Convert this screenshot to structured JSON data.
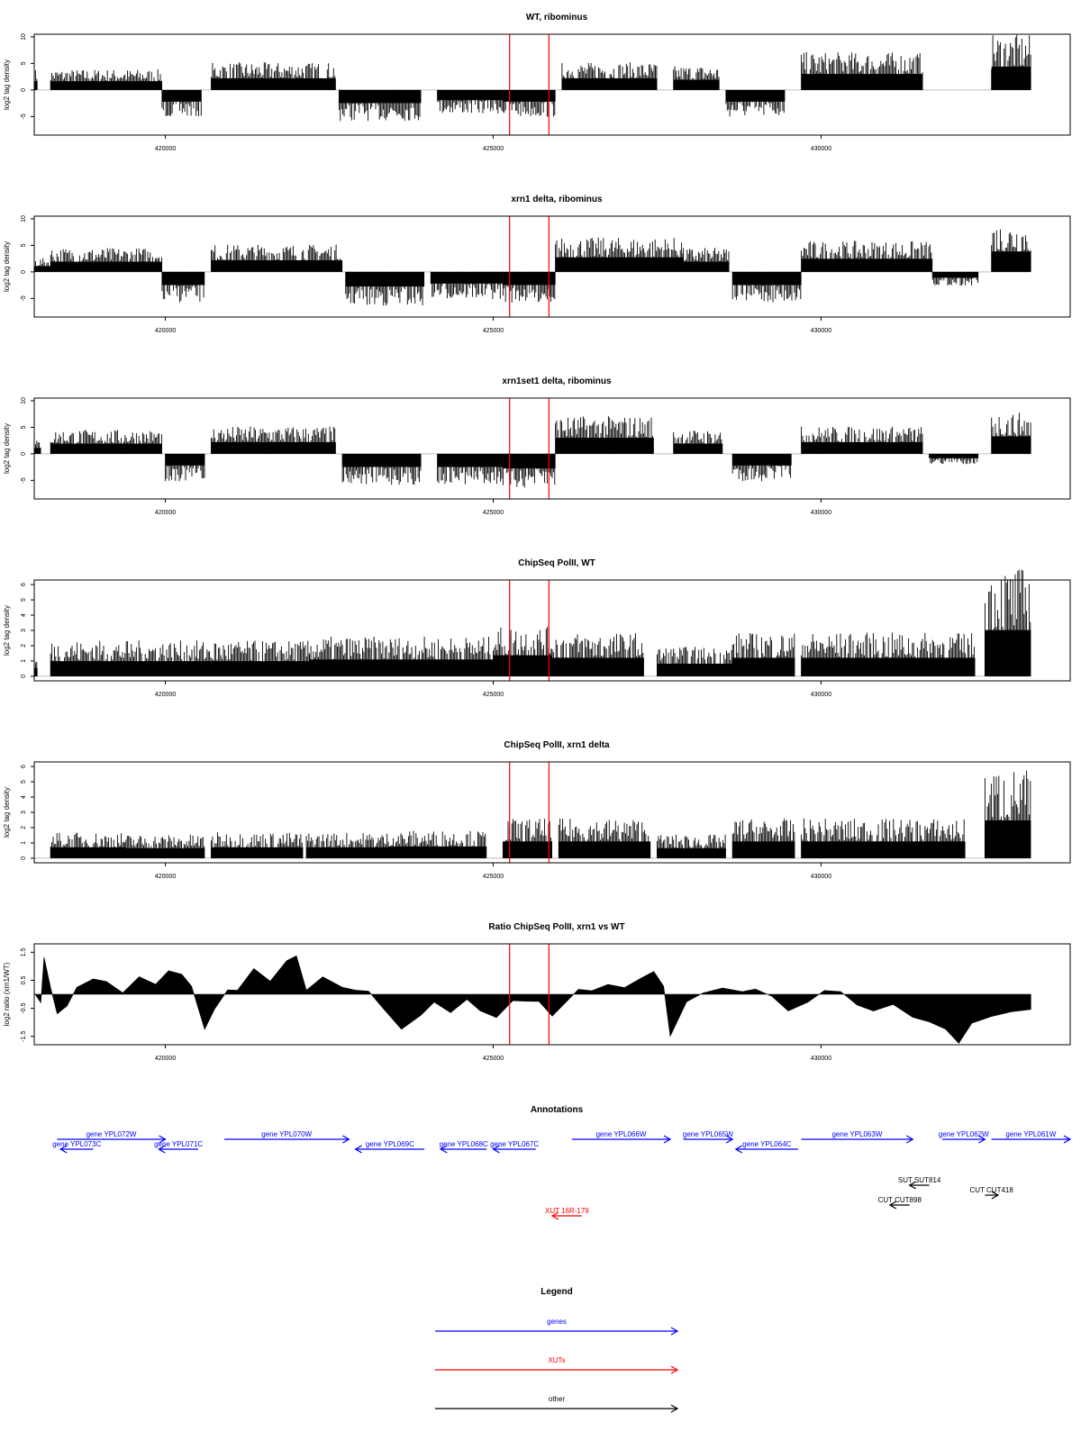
{
  "chart_data": [
    {
      "type": "bar",
      "title": "WT, ribominus",
      "xlabel": "",
      "ylabel": "log2 tag density",
      "xlim": [
        418000,
        433800
      ],
      "ylim": [
        -8.5,
        10.5
      ],
      "x_ticks": [
        420000,
        425000,
        430000
      ],
      "x_tick_labels": [
        "420000",
        "425000",
        "430000"
      ],
      "y_ticks": [
        -5,
        0,
        5,
        10
      ],
      "y_tick_labels": [
        "-5",
        "0",
        "5",
        "10"
      ],
      "marker_lines_x": [
        425250,
        425850
      ],
      "marker_color": "#ff0000",
      "bar_color": "#000000",
      "regions": [
        {
          "start": 418000,
          "end": 418050,
          "value": 3
        },
        {
          "start": 418250,
          "end": 419950,
          "value": 3
        },
        {
          "start": 419950,
          "end": 420550,
          "value": -4
        },
        {
          "start": 420700,
          "end": 422600,
          "value": 4
        },
        {
          "start": 422650,
          "end": 423900,
          "value": -4.5
        },
        {
          "start": 424150,
          "end": 425150,
          "value": -3.5
        },
        {
          "start": 425150,
          "end": 425950,
          "value": -4
        },
        {
          "start": 426050,
          "end": 427500,
          "value": 4
        },
        {
          "start": 427750,
          "end": 428450,
          "value": 3.5
        },
        {
          "start": 428550,
          "end": 429450,
          "value": -4
        },
        {
          "start": 429700,
          "end": 431550,
          "value": 5.5
        },
        {
          "start": 432600,
          "end": 433200,
          "value": 8
        }
      ]
    },
    {
      "type": "bar",
      "title": "xrn1 delta, ribominus",
      "xlabel": "",
      "ylabel": "log2 tag density",
      "xlim": [
        418000,
        433800
      ],
      "ylim": [
        -8.5,
        10.5
      ],
      "x_ticks": [
        420000,
        425000,
        430000
      ],
      "x_tick_labels": [
        "420000",
        "425000",
        "430000"
      ],
      "y_ticks": [
        -5,
        0,
        5,
        10
      ],
      "y_tick_labels": [
        "-5",
        "0",
        "5",
        "10"
      ],
      "marker_lines_x": [
        425250,
        425850
      ],
      "marker_color": "#ff0000",
      "bar_color": "#000000",
      "regions": [
        {
          "start": 418000,
          "end": 418250,
          "value": 2
        },
        {
          "start": 418250,
          "end": 419950,
          "value": 3.5
        },
        {
          "start": 419950,
          "end": 420600,
          "value": -4.5
        },
        {
          "start": 420700,
          "end": 422700,
          "value": 4
        },
        {
          "start": 422750,
          "end": 423950,
          "value": -5
        },
        {
          "start": 424050,
          "end": 425150,
          "value": -4
        },
        {
          "start": 425150,
          "end": 425950,
          "value": -4.5
        },
        {
          "start": 425950,
          "end": 427900,
          "value": 5
        },
        {
          "start": 427900,
          "end": 428600,
          "value": 3.5
        },
        {
          "start": 428650,
          "end": 429700,
          "value": -4.5
        },
        {
          "start": 429700,
          "end": 431700,
          "value": 4.5
        },
        {
          "start": 431700,
          "end": 432400,
          "value": -2
        },
        {
          "start": 432600,
          "end": 433200,
          "value": 7
        }
      ]
    },
    {
      "type": "bar",
      "title": "xrn1set1 delta, ribominus",
      "xlabel": "",
      "ylabel": "log2 tag density",
      "xlim": [
        418000,
        433800
      ],
      "ylim": [
        -8.5,
        10.5
      ],
      "x_ticks": [
        420000,
        425000,
        430000
      ],
      "x_tick_labels": [
        "420000",
        "425000",
        "430000"
      ],
      "y_ticks": [
        -5,
        0,
        5,
        10
      ],
      "y_tick_labels": [
        "-5",
        "0",
        "5",
        "10"
      ],
      "marker_lines_x": [
        425250,
        425850
      ],
      "marker_color": "#ff0000",
      "bar_color": "#000000",
      "regions": [
        {
          "start": 418000,
          "end": 418100,
          "value": 2
        },
        {
          "start": 418250,
          "end": 419950,
          "value": 3.5
        },
        {
          "start": 420000,
          "end": 420600,
          "value": -4
        },
        {
          "start": 420700,
          "end": 422600,
          "value": 4
        },
        {
          "start": 422700,
          "end": 423900,
          "value": -4.5
        },
        {
          "start": 424150,
          "end": 425150,
          "value": -4.5
        },
        {
          "start": 425150,
          "end": 425950,
          "value": -5
        },
        {
          "start": 425950,
          "end": 427450,
          "value": 5.5
        },
        {
          "start": 427750,
          "end": 428500,
          "value": 3.5
        },
        {
          "start": 428650,
          "end": 429550,
          "value": -4
        },
        {
          "start": 429700,
          "end": 431550,
          "value": 4
        },
        {
          "start": 431650,
          "end": 432400,
          "value": -1.5
        },
        {
          "start": 432600,
          "end": 433200,
          "value": 6
        }
      ]
    },
    {
      "type": "bar",
      "title": "ChipSeq PolII, WT",
      "xlabel": "",
      "ylabel": "log2 tag density",
      "xlim": [
        418000,
        433800
      ],
      "ylim": [
        -0.3,
        6.3
      ],
      "x_ticks": [
        420000,
        425000,
        430000
      ],
      "x_tick_labels": [
        "420000",
        "425000",
        "430000"
      ],
      "y_ticks": [
        0,
        1,
        2,
        3,
        4,
        5,
        6
      ],
      "y_tick_labels": [
        "0",
        "1",
        "2",
        "3",
        "4",
        "5",
        "6"
      ],
      "marker_lines_x": [
        425250,
        425850
      ],
      "marker_color": "#ff0000",
      "bar_color": "#000000",
      "regions": [
        {
          "start": 418000,
          "end": 418050,
          "value": 1
        },
        {
          "start": 418250,
          "end": 422200,
          "value": 1.8
        },
        {
          "start": 422200,
          "end": 425000,
          "value": 2
        },
        {
          "start": 425000,
          "end": 425900,
          "value": 2.5
        },
        {
          "start": 425900,
          "end": 427300,
          "value": 2.2
        },
        {
          "start": 427500,
          "end": 428650,
          "value": 1.5
        },
        {
          "start": 428650,
          "end": 429600,
          "value": 2.2
        },
        {
          "start": 429700,
          "end": 432350,
          "value": 2.2
        },
        {
          "start": 432500,
          "end": 433200,
          "value": 5.5
        }
      ]
    },
    {
      "type": "bar",
      "title": "ChipSeq PolII, xrn1 delta",
      "xlabel": "",
      "ylabel": "log2 tag density",
      "xlim": [
        418000,
        433800
      ],
      "ylim": [
        -0.3,
        6.3
      ],
      "x_ticks": [
        420000,
        425000,
        430000
      ],
      "x_tick_labels": [
        "420000",
        "425000",
        "430000"
      ],
      "y_ticks": [
        0,
        1,
        2,
        3,
        4,
        5,
        6
      ],
      "y_tick_labels": [
        "0",
        "1",
        "2",
        "3",
        "4",
        "5",
        "6"
      ],
      "marker_lines_x": [
        425250,
        425850
      ],
      "marker_color": "#ff0000",
      "bar_color": "#000000",
      "regions": [
        {
          "start": 418250,
          "end": 419400,
          "value": 1.3
        },
        {
          "start": 419400,
          "end": 420600,
          "value": 1.2
        },
        {
          "start": 420700,
          "end": 422100,
          "value": 1.3
        },
        {
          "start": 422150,
          "end": 423400,
          "value": 1.3
        },
        {
          "start": 423400,
          "end": 424900,
          "value": 1.4
        },
        {
          "start": 425150,
          "end": 425900,
          "value": 2
        },
        {
          "start": 426000,
          "end": 427400,
          "value": 2
        },
        {
          "start": 427500,
          "end": 428550,
          "value": 1.2
        },
        {
          "start": 428650,
          "end": 429600,
          "value": 2
        },
        {
          "start": 429700,
          "end": 432200,
          "value": 2
        },
        {
          "start": 432500,
          "end": 433200,
          "value": 4.5
        }
      ]
    },
    {
      "type": "area",
      "title": "Ratio ChipSeq PolII, xrn1 vs WT",
      "xlabel": "",
      "ylabel": "log2 ratio (xrn1/WT)",
      "xlim": [
        418000,
        433800
      ],
      "ylim": [
        -1.8,
        1.8
      ],
      "x_ticks": [
        420000,
        425000,
        430000
      ],
      "x_tick_labels": [
        "420000",
        "425000",
        "430000"
      ],
      "y_ticks": [
        -1.5,
        -0.5,
        0.5,
        1.5
      ],
      "y_tick_labels": [
        "-1.5",
        "-0.5",
        "0.5",
        "1.5"
      ],
      "marker_lines_x": [
        425250,
        425850
      ],
      "marker_color": "#ff0000",
      "fill_color": "#000000",
      "baseline": 0,
      "points": [
        [
          418000,
          0
        ],
        [
          418100,
          -0.3
        ],
        [
          418150,
          1.3
        ],
        [
          418250,
          0.2
        ],
        [
          418350,
          -0.7
        ],
        [
          418500,
          -0.4
        ],
        [
          418650,
          0.2
        ],
        [
          418900,
          0.5
        ],
        [
          419100,
          0.4
        ],
        [
          419350,
          0.1
        ],
        [
          419600,
          0.6
        ],
        [
          419850,
          0.3
        ],
        [
          420050,
          0.9
        ],
        [
          420250,
          0.7
        ],
        [
          420400,
          0.3
        ],
        [
          420600,
          -1.3
        ],
        [
          420750,
          -0.5
        ],
        [
          420950,
          0.1
        ],
        [
          421100,
          0.2
        ],
        [
          421350,
          0.9
        ],
        [
          421600,
          0.5
        ],
        [
          421850,
          1.2
        ],
        [
          422000,
          1.4
        ],
        [
          422150,
          0.2
        ],
        [
          422400,
          0.6
        ],
        [
          422700,
          0.3
        ],
        [
          422900,
          0.1
        ],
        [
          423100,
          0.15
        ],
        [
          423300,
          -0.5
        ],
        [
          423600,
          -1.2
        ],
        [
          423900,
          -0.7
        ],
        [
          424100,
          -0.3
        ],
        [
          424350,
          -0.6
        ],
        [
          424600,
          -0.2
        ],
        [
          424800,
          -0.6
        ],
        [
          425050,
          -0.8
        ],
        [
          425300,
          -0.2
        ],
        [
          425500,
          -0.2
        ],
        [
          425700,
          -0.3
        ],
        [
          425900,
          -0.8
        ],
        [
          426100,
          -0.3
        ],
        [
          426300,
          0.2
        ],
        [
          426500,
          0.1
        ],
        [
          426750,
          0.4
        ],
        [
          427000,
          0.2
        ],
        [
          427250,
          0.6
        ],
        [
          427450,
          0.8
        ],
        [
          427600,
          0.3
        ],
        [
          427700,
          -1.5
        ],
        [
          427950,
          -0.3
        ],
        [
          428200,
          0.1
        ],
        [
          428500,
          0.2
        ],
        [
          428800,
          0.1
        ],
        [
          429000,
          0.2
        ],
        [
          429250,
          -0.1
        ],
        [
          429500,
          -0.6
        ],
        [
          429800,
          -0.3
        ],
        [
          430050,
          0.1
        ],
        [
          430300,
          0.1
        ],
        [
          430550,
          -0.4
        ],
        [
          430800,
          -0.6
        ],
        [
          431100,
          -0.3
        ],
        [
          431400,
          -0.8
        ],
        [
          431650,
          -1.0
        ],
        [
          431900,
          -1.2
        ],
        [
          432100,
          -1.7
        ],
        [
          432300,
          -1.0
        ],
        [
          432600,
          -0.8
        ],
        [
          432900,
          -0.6
        ],
        [
          433200,
          -0.5
        ]
      ]
    }
  ],
  "annotations": {
    "title": "Annotations",
    "genes": [
      {
        "label": "gene YPL072W",
        "start": 418350,
        "end": 420000,
        "strand": "+",
        "row": 0
      },
      {
        "label": "gene YPL073C",
        "start": 418400,
        "end": 418900,
        "strand": "-",
        "row": 1
      },
      {
        "label": "gene YPL071C",
        "start": 419900,
        "end": 420500,
        "strand": "-",
        "row": 1
      },
      {
        "label": "gene YPL070W",
        "start": 420900,
        "end": 422800,
        "strand": "+",
        "row": 0
      },
      {
        "label": "gene YPL069C",
        "start": 422900,
        "end": 423950,
        "strand": "-",
        "row": 1
      },
      {
        "label": "gene YPL068C",
        "start": 424200,
        "end": 424900,
        "strand": "-",
        "row": 1
      },
      {
        "label": "gene YPL067C",
        "start": 425000,
        "end": 425650,
        "strand": "-",
        "row": 1
      },
      {
        "label": "gene YPL066W",
        "start": 426200,
        "end": 427700,
        "strand": "+",
        "row": 0
      },
      {
        "label": "gene YPL065W",
        "start": 427900,
        "end": 428650,
        "strand": "+",
        "row": 0
      },
      {
        "label": "gene YPL064C",
        "start": 428700,
        "end": 429650,
        "strand": "-",
        "row": 1
      },
      {
        "label": "gene YPL063W",
        "start": 429700,
        "end": 431400,
        "strand": "+",
        "row": 0
      },
      {
        "label": "gene YPL062W",
        "start": 431850,
        "end": 432500,
        "strand": "+",
        "row": 0
      },
      {
        "label": "gene YPL061W",
        "start": 432600,
        "end": 433800,
        "strand": "+",
        "row": 0
      }
    ],
    "others": [
      {
        "label": "SUT SUT814",
        "start": 431350,
        "end": 431650,
        "strand": "-",
        "row": 0
      },
      {
        "label": "CUT CUT418",
        "start": 432500,
        "end": 432700,
        "strand": "+",
        "row": 1
      },
      {
        "label": "CUT CUT898",
        "start": 431050,
        "end": 431350,
        "strand": "-",
        "row": 2
      }
    ],
    "xuts": [
      {
        "label": "XUT 16R-179",
        "start": 425900,
        "end": 426350,
        "strand": "-",
        "row": 0
      }
    ]
  },
  "legend": {
    "title": "Legend",
    "items": [
      {
        "label": "genes",
        "color": "#0000ff"
      },
      {
        "label": "XUTs",
        "color": "#ff0000"
      },
      {
        "label": "other",
        "color": "#000000"
      }
    ]
  },
  "colors": {
    "gene": "#0000ff",
    "xut": "#ff0000",
    "other": "#000000",
    "marker": "#ff0000",
    "axis": "#000000",
    "background": "#ffffff"
  }
}
